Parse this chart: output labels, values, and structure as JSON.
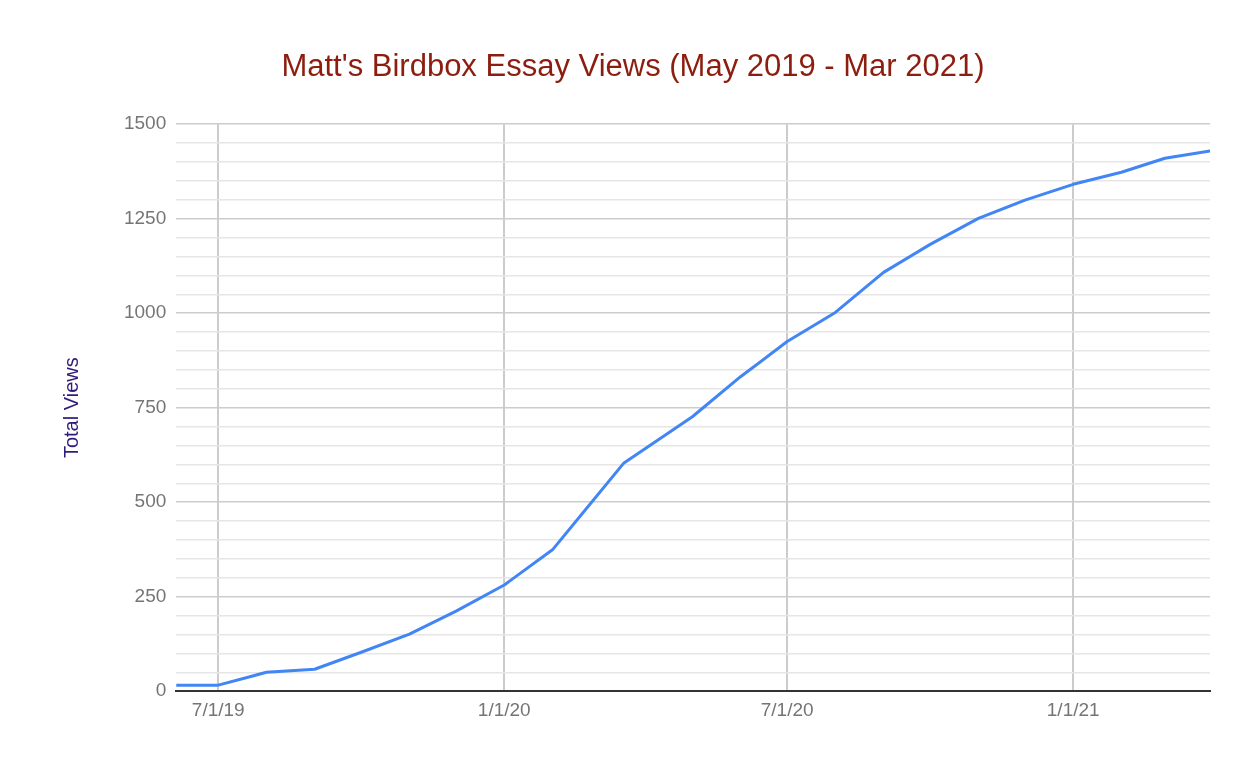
{
  "chart_data": {
    "type": "line",
    "title": "Matt's Birdbox Essay Views (May 2019 - Mar 2021)",
    "ylabel": "Total Views",
    "x": [
      "2019-06-04",
      "2019-07-01",
      "2019-08-01",
      "2019-09-01",
      "2019-10-01",
      "2019-11-01",
      "2019-12-01",
      "2020-01-01",
      "2020-02-01",
      "2020-03-18",
      "2020-05-01",
      "2020-06-01",
      "2020-07-01",
      "2020-08-01",
      "2020-09-01",
      "2020-10-01",
      "2020-11-01",
      "2020-12-01",
      "2021-01-01",
      "2021-02-01",
      "2021-03-01",
      "2021-03-30"
    ],
    "series": [
      {
        "color": "#4285f4",
        "values": [
          16,
          16,
          50,
          58,
          103,
          151,
          212,
          281,
          374,
          604,
          726,
          832,
          925,
          1002,
          1108,
          1182,
          1251,
          1299,
          1341,
          1373,
          1410,
          1429
        ]
      }
    ],
    "xlim": [
      "2019-06-04",
      "2021-03-30"
    ],
    "xticks": [
      {
        "value": "2019-07-01",
        "label": "7/1/19"
      },
      {
        "value": "2020-01-01",
        "label": "1/1/20"
      },
      {
        "value": "2020-07-01",
        "label": "7/1/20"
      },
      {
        "value": "2021-01-01",
        "label": "1/1/21"
      }
    ],
    "ylim": [
      0,
      1500
    ],
    "yticks": [
      0,
      {
        "value": 50,
        "label": null
      },
      {
        "value": 100,
        "label": null
      },
      {
        "value": 150,
        "label": null
      },
      {
        "value": 200,
        "label": null
      },
      250,
      {
        "value": 300,
        "label": null
      },
      {
        "value": 350,
        "label": null
      },
      {
        "value": 400,
        "label": null
      },
      {
        "value": 450,
        "label": null
      },
      500,
      {
        "value": 550,
        "label": null
      },
      {
        "value": 600,
        "label": null
      },
      {
        "value": 650,
        "label": null
      },
      {
        "value": 700,
        "label": null
      },
      750,
      {
        "value": 800,
        "label": null
      },
      {
        "value": 850,
        "label": null
      },
      {
        "value": 900,
        "label": null
      },
      {
        "value": 950,
        "label": null
      },
      1000,
      {
        "value": 1050,
        "label": null
      },
      {
        "value": 1100,
        "label": null
      },
      {
        "value": 1150,
        "label": null
      },
      {
        "value": 1200,
        "label": null
      },
      1250,
      {
        "value": 1300,
        "label": null
      },
      {
        "value": 1350,
        "label": null
      },
      {
        "value": 1400,
        "label": null
      },
      {
        "value": 1450,
        "label": null
      },
      1500
    ],
    "grid": true,
    "legend": false,
    "marker": "none",
    "line_style": "solid"
  }
}
